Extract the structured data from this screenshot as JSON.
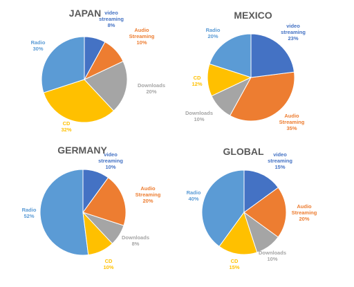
{
  "colors": {
    "video_streaming": "#4472C4",
    "audio_streaming": "#ED7D31",
    "downloads": "#A5A5A5",
    "cd": "#FFC000",
    "radio": "#5B9BD5",
    "title": "#595959"
  },
  "chart_data": [
    {
      "type": "pie",
      "title": "JAPAN",
      "slices": [
        {
          "key": "video_streaming",
          "label": [
            "video",
            "streaming"
          ],
          "value": 8,
          "value_label": "8%"
        },
        {
          "key": "audio_streaming",
          "label": [
            "Audio",
            "Streaming"
          ],
          "value": 10,
          "value_label": "10%"
        },
        {
          "key": "downloads",
          "label": [
            "Downloads"
          ],
          "value": 20,
          "value_label": "20%"
        },
        {
          "key": "cd",
          "label": [
            "CD"
          ],
          "value": 32,
          "value_label": "32%"
        },
        {
          "key": "radio",
          "label": [
            "Radio"
          ],
          "value": 30,
          "value_label": "30%"
        }
      ]
    },
    {
      "type": "pie",
      "title": "MEXICO",
      "slices": [
        {
          "key": "video_streaming",
          "label": [
            "video",
            "streaming"
          ],
          "value": 23,
          "value_label": "23%"
        },
        {
          "key": "audio_streaming",
          "label": [
            "Audio",
            "Streaming"
          ],
          "value": 35,
          "value_label": "35%"
        },
        {
          "key": "downloads",
          "label": [
            "Downloads"
          ],
          "value": 10,
          "value_label": "10%"
        },
        {
          "key": "cd",
          "label": [
            "CD"
          ],
          "value": 12,
          "value_label": "12%"
        },
        {
          "key": "radio",
          "label": [
            "Radio"
          ],
          "value": 20,
          "value_label": "20%"
        }
      ]
    },
    {
      "type": "pie",
      "title": "GERMANY",
      "slices": [
        {
          "key": "video_streaming",
          "label": [
            "video",
            "streaming"
          ],
          "value": 10,
          "value_label": "10%"
        },
        {
          "key": "audio_streaming",
          "label": [
            "Audio",
            "Streaming"
          ],
          "value": 20,
          "value_label": "20%"
        },
        {
          "key": "downloads",
          "label": [
            "Downloads"
          ],
          "value": 8,
          "value_label": "8%"
        },
        {
          "key": "cd",
          "label": [
            "CD"
          ],
          "value": 10,
          "value_label": "10%"
        },
        {
          "key": "radio",
          "label": [
            "Radio"
          ],
          "value": 52,
          "value_label": "52%"
        }
      ]
    },
    {
      "type": "pie",
      "title": "GLOBAL",
      "slices": [
        {
          "key": "video_streaming",
          "label": [
            "video",
            "streaming"
          ],
          "value": 15,
          "value_label": "15%"
        },
        {
          "key": "audio_streaming",
          "label": [
            "Audio",
            "Streaming"
          ],
          "value": 20,
          "value_label": "20%"
        },
        {
          "key": "downloads",
          "label": [
            "Downloads"
          ],
          "value": 10,
          "value_label": "10%"
        },
        {
          "key": "cd",
          "label": [
            "CD"
          ],
          "value": 15,
          "value_label": "15%"
        },
        {
          "key": "radio",
          "label": [
            "Radio"
          ],
          "value": 40,
          "value_label": "40%"
        }
      ]
    }
  ]
}
